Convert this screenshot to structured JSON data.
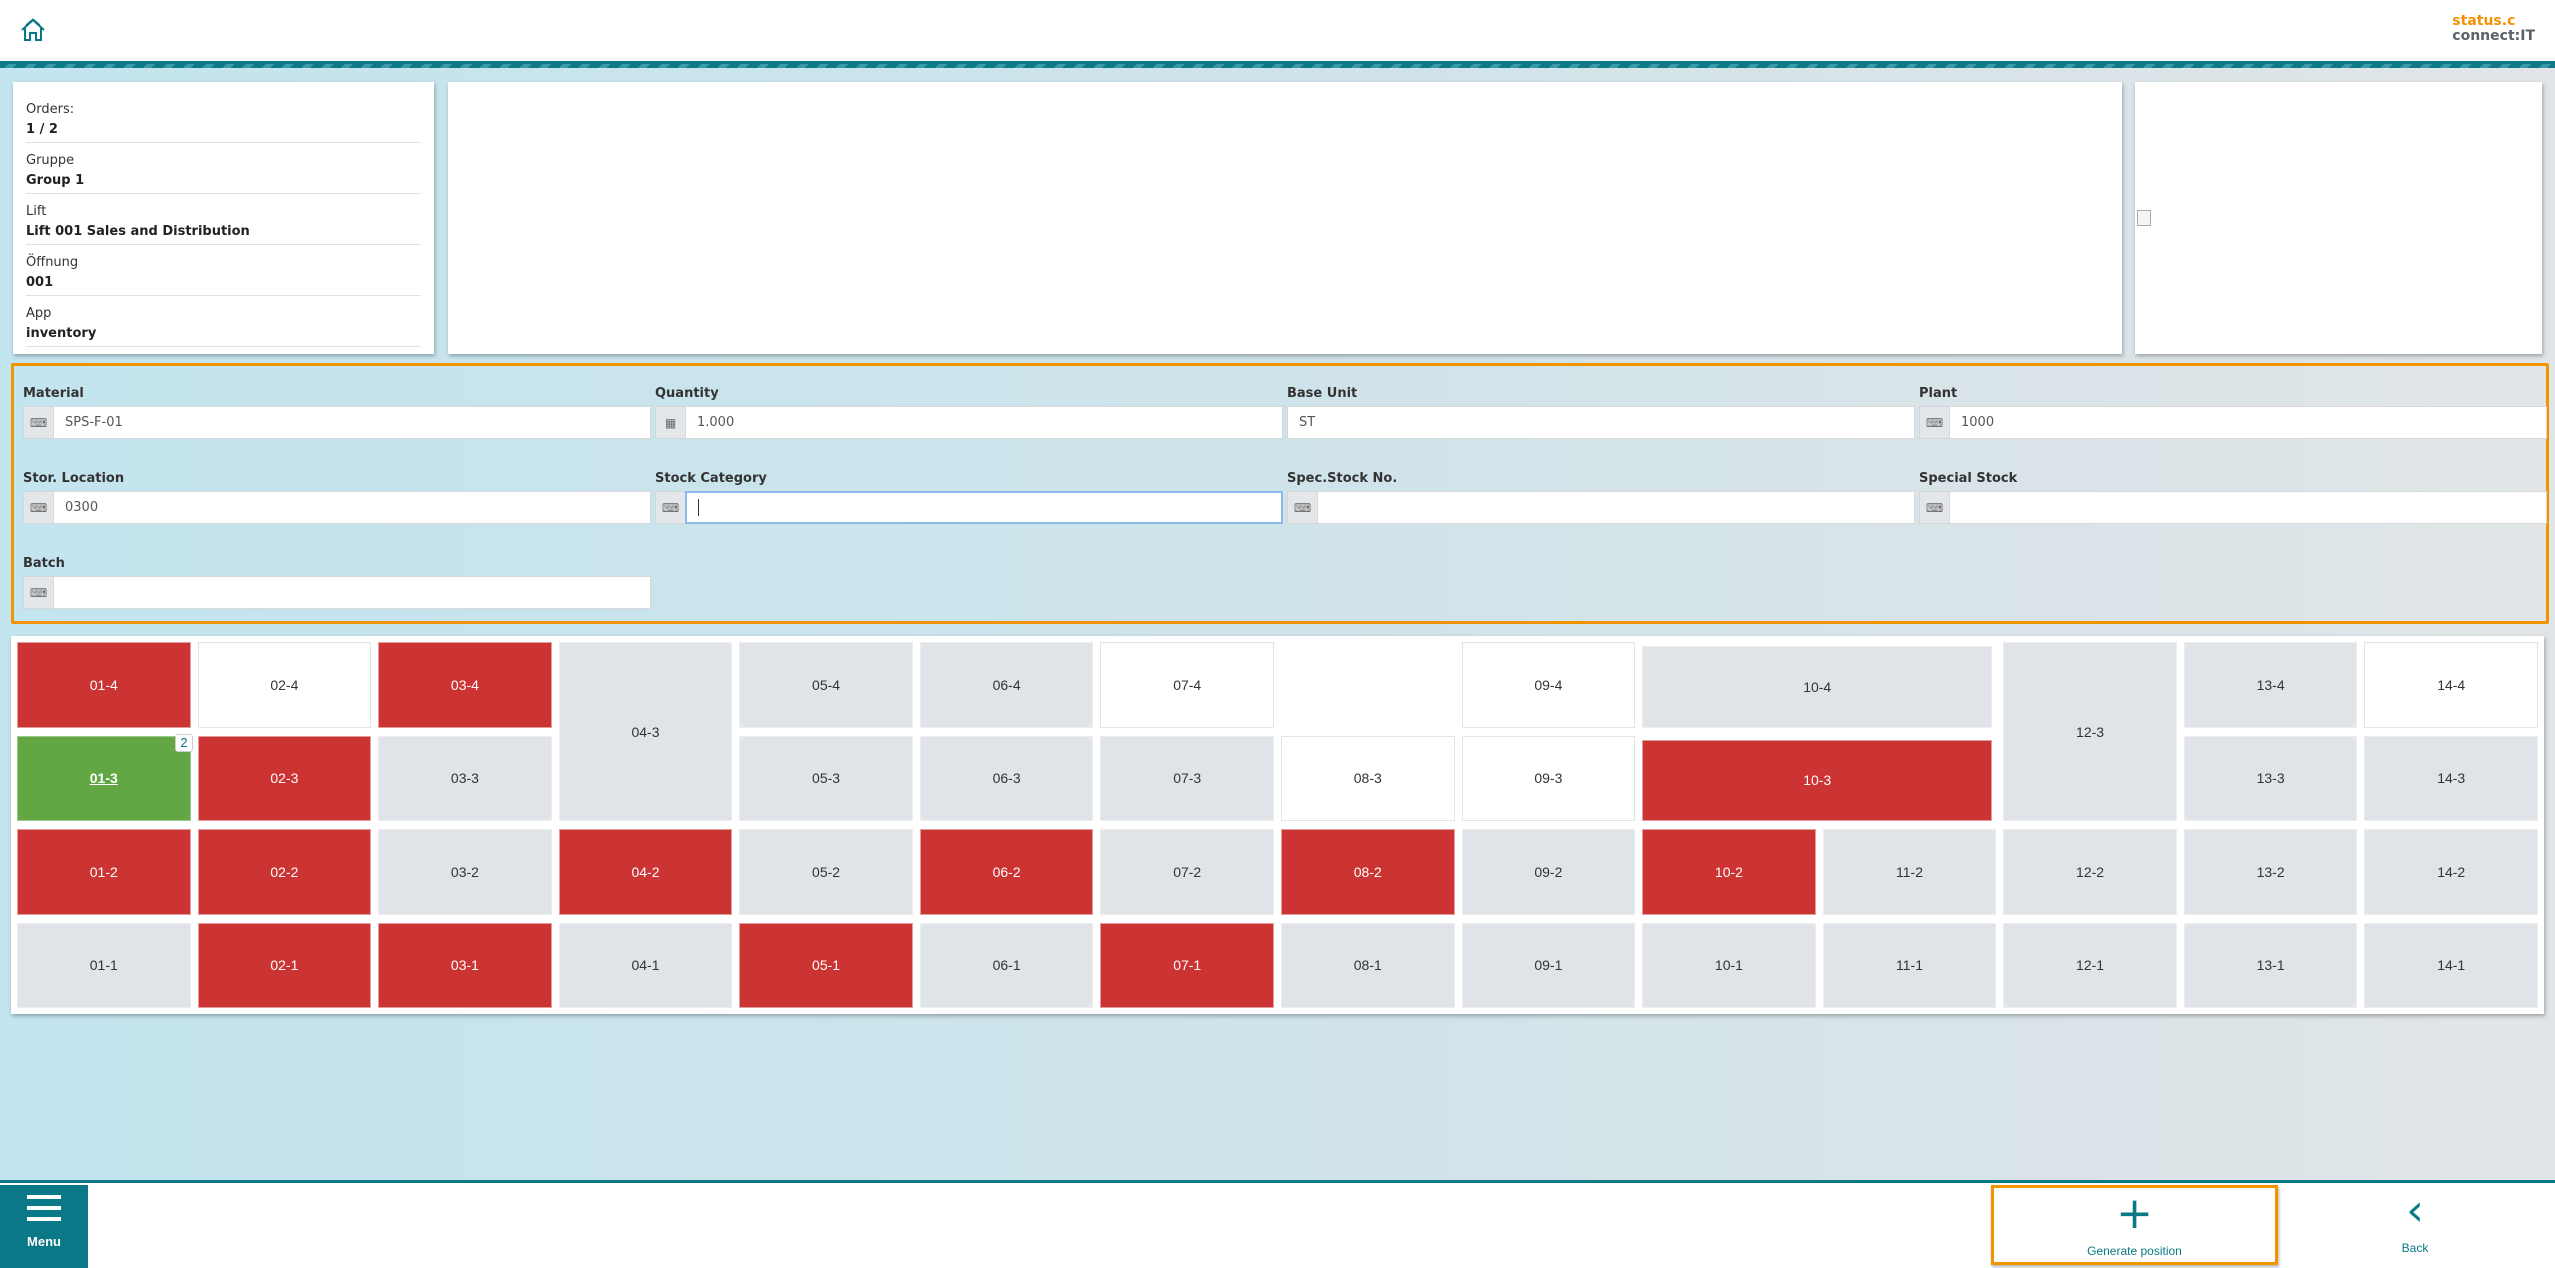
{
  "header": {
    "home_icon": "home-icon",
    "logo_line1": "status.c",
    "logo_line2": "connect:IT"
  },
  "info": [
    {
      "label": "Orders:",
      "value": "1 / 2"
    },
    {
      "label": "Gruppe",
      "value": "Group 1"
    },
    {
      "label": "Lift",
      "value": "Lift 001 Sales and Distribution"
    },
    {
      "label": "Öffnung",
      "value": "001"
    },
    {
      "label": "App",
      "value": "inventory"
    }
  ],
  "form": {
    "material": {
      "label": "Material",
      "value": "SPS-F-01",
      "icon": "keyboard-icon"
    },
    "quantity": {
      "label": "Quantity",
      "value": "1.000",
      "icon": "calculator-icon"
    },
    "base_unit": {
      "label": "Base Unit",
      "value": "ST"
    },
    "plant": {
      "label": "Plant",
      "value": "1000",
      "icon": "keyboard-icon"
    },
    "stor_location": {
      "label": "Stor. Location",
      "value": "0300",
      "icon": "keyboard-icon"
    },
    "stock_category": {
      "label": "Stock Category",
      "value": "",
      "icon": "keyboard-icon"
    },
    "spec_stock_no": {
      "label": "Spec.Stock No.",
      "value": "",
      "icon": "keyboard-icon"
    },
    "special_stock": {
      "label": "Special Stock",
      "value": "",
      "icon": "keyboard-icon"
    },
    "batch": {
      "label": "Batch",
      "value": "",
      "icon": "keyboard-icon"
    }
  },
  "colors": {
    "occupied": "#cc3333",
    "free": "#ffffff",
    "empty": "#e0e3e7",
    "selected": "#62a744",
    "accent": "#0a7886",
    "highlight": "#f29400"
  },
  "compartments": [
    {
      "label": "01-4",
      "status": "occupied"
    },
    {
      "label": "02-4",
      "status": "free"
    },
    {
      "label": "03-4",
      "status": "occupied"
    },
    {
      "label": "04-3",
      "status": "empty"
    },
    {
      "label": "05-4",
      "status": "empty"
    },
    {
      "label": "06-4",
      "status": "empty"
    },
    {
      "label": "07-4",
      "status": "free"
    },
    {
      "label": "09-4",
      "status": "free"
    },
    {
      "label": "10-4",
      "status": "empty"
    },
    {
      "label": "12-3",
      "status": "empty"
    },
    {
      "label": "13-4",
      "status": "empty"
    },
    {
      "label": "14-4",
      "status": "free"
    },
    {
      "label": "01-3",
      "status": "selected",
      "badge": "2"
    },
    {
      "label": "02-3",
      "status": "occupied"
    },
    {
      "label": "03-3",
      "status": "empty"
    },
    {
      "label": "05-3",
      "status": "empty"
    },
    {
      "label": "06-3",
      "status": "empty"
    },
    {
      "label": "07-3",
      "status": "empty"
    },
    {
      "label": "08-3",
      "status": "free"
    },
    {
      "label": "09-3",
      "status": "free"
    },
    {
      "label": "10-3",
      "status": "occupied"
    },
    {
      "label": "13-3",
      "status": "empty"
    },
    {
      "label": "14-3",
      "status": "empty"
    },
    {
      "label": "01-2",
      "status": "occupied"
    },
    {
      "label": "02-2",
      "status": "occupied"
    },
    {
      "label": "03-2",
      "status": "empty"
    },
    {
      "label": "04-2",
      "status": "occupied"
    },
    {
      "label": "05-2",
      "status": "empty"
    },
    {
      "label": "06-2",
      "status": "occupied"
    },
    {
      "label": "07-2",
      "status": "empty"
    },
    {
      "label": "08-2",
      "status": "occupied"
    },
    {
      "label": "09-2",
      "status": "empty"
    },
    {
      "label": "10-2",
      "status": "occupied"
    },
    {
      "label": "11-2",
      "status": "empty"
    },
    {
      "label": "12-2",
      "status": "empty"
    },
    {
      "label": "13-2",
      "status": "empty"
    },
    {
      "label": "14-2",
      "status": "empty"
    },
    {
      "label": "01-1",
      "status": "empty"
    },
    {
      "label": "02-1",
      "status": "occupied"
    },
    {
      "label": "03-1",
      "status": "occupied"
    },
    {
      "label": "04-1",
      "status": "empty"
    },
    {
      "label": "05-1",
      "status": "occupied"
    },
    {
      "label": "06-1",
      "status": "empty"
    },
    {
      "label": "07-1",
      "status": "occupied"
    },
    {
      "label": "08-1",
      "status": "empty"
    },
    {
      "label": "09-1",
      "status": "empty"
    },
    {
      "label": "10-1",
      "status": "empty"
    },
    {
      "label": "11-1",
      "status": "empty"
    },
    {
      "label": "12-1",
      "status": "empty"
    },
    {
      "label": "13-1",
      "status": "empty"
    },
    {
      "label": "14-1",
      "status": "empty"
    }
  ],
  "footer": {
    "menu_label": "Menu",
    "generate_label": "Generate position",
    "back_label": "Back"
  }
}
